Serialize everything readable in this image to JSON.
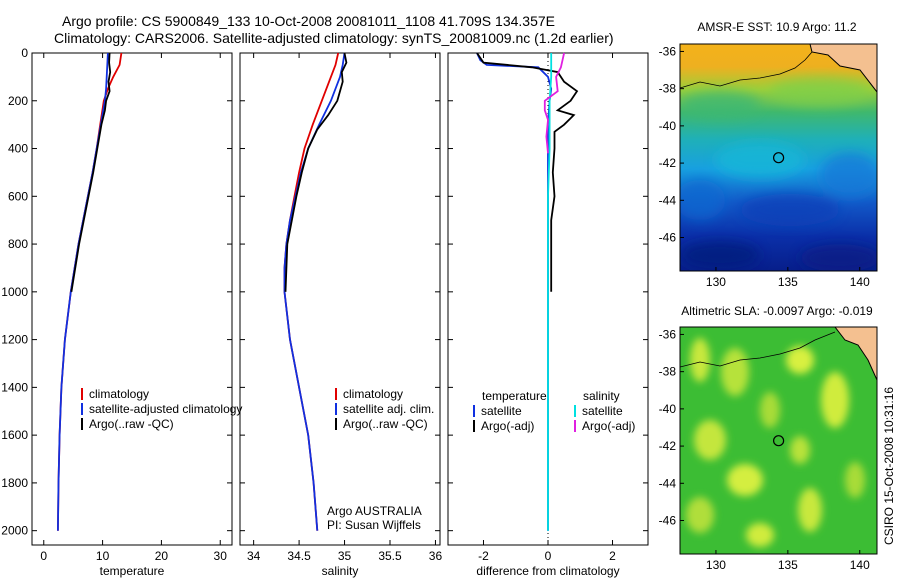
{
  "header": {
    "line1": "Argo profile: CS 5900849_133 10-Oct-2008 20081011_1108 41.709S 134.357E",
    "line2": "Climatology: CARS2006. Satellite-adjusted climatology: synTS_20081009.nc (1.2d earlier)"
  },
  "side_label": "CSIRO 15-Oct-2008 10:31:16",
  "colors": {
    "climatology": "#e00000",
    "satellite": "#1030e0",
    "argo": "#000000",
    "sat_salinity": "#00e0e0",
    "argo_salinity": "#e020e0"
  },
  "chart_data": [
    {
      "type": "line",
      "xlabel": "temperature",
      "xlim": [
        -2,
        32
      ],
      "xticks": [
        0,
        10,
        20,
        30
      ],
      "xtick_labels": [
        "0",
        "10",
        "20",
        "30"
      ],
      "ylim": [
        2060,
        0
      ],
      "yticks": [
        0,
        200,
        400,
        600,
        800,
        1000,
        1200,
        1400,
        1600,
        1800,
        2000
      ],
      "ytick_labels": [
        "0",
        "200",
        "400",
        "600",
        "800",
        "1000",
        "1200",
        "1400",
        "1600",
        "1800",
        "2000"
      ],
      "legend": [
        "climatology",
        "satellite-adjusted climatology",
        "Argo(..raw -QC)"
      ],
      "series": [
        {
          "name": "climatology",
          "depth": [
            0,
            50,
            100,
            150,
            200,
            300,
            400,
            500,
            600,
            800,
            1000,
            1200,
            1400,
            1600,
            1800,
            2000
          ],
          "values": [
            13.2,
            12.9,
            11.8,
            10.9,
            10.2,
            9.6,
            9.0,
            8.3,
            7.5,
            5.9,
            4.6,
            3.6,
            3.0,
            2.7,
            2.5,
            2.4
          ]
        },
        {
          "name": "satellite-adjusted climatology",
          "depth": [
            0,
            50,
            100,
            150,
            200,
            300,
            400,
            500,
            600,
            800,
            1000,
            1200,
            1400,
            1600,
            1800,
            2000
          ],
          "values": [
            10.9,
            10.8,
            10.7,
            10.6,
            10.4,
            9.7,
            9.0,
            8.3,
            7.5,
            5.9,
            4.6,
            3.6,
            3.0,
            2.7,
            2.5,
            2.4
          ]
        },
        {
          "name": "Argo(..raw -QC)",
          "depth": [
            0,
            40,
            80,
            120,
            160,
            200,
            240,
            300,
            400,
            500,
            600,
            800,
            1000
          ],
          "values": [
            11.2,
            11.1,
            11.3,
            11.0,
            11.2,
            10.6,
            10.4,
            9.8,
            9.1,
            8.4,
            7.6,
            6.0,
            4.7
          ]
        }
      ]
    },
    {
      "type": "line",
      "xlabel": "salinity",
      "xlim": [
        33.85,
        36.05
      ],
      "xticks": [
        34,
        34.5,
        35,
        35.5,
        36
      ],
      "xtick_labels": [
        "34",
        "34.5",
        "35",
        "35.5",
        "36"
      ],
      "legend": [
        "climatology",
        "satellite adj. clim.",
        "Argo(..raw -QC)"
      ],
      "annotation": [
        "Argo AUSTRALIA",
        "PI: Susan Wijffels"
      ],
      "series": [
        {
          "name": "climatology",
          "depth": [
            0,
            50,
            100,
            200,
            300,
            400,
            500,
            600,
            700,
            800,
            900,
            1000,
            1200,
            1400,
            1600,
            1800,
            2000
          ],
          "values": [
            34.93,
            34.9,
            34.85,
            34.75,
            34.65,
            34.56,
            34.5,
            34.45,
            34.4,
            34.36,
            34.34,
            34.34,
            34.4,
            34.5,
            34.6,
            34.66,
            34.7
          ]
        },
        {
          "name": "satellite adj. clim.",
          "depth": [
            0,
            50,
            100,
            200,
            300,
            400,
            500,
            600,
            700,
            800,
            900,
            1000,
            1200,
            1400,
            1600,
            1800,
            2000
          ],
          "values": [
            35.0,
            34.98,
            34.95,
            34.85,
            34.72,
            34.6,
            34.52,
            34.46,
            34.4,
            34.36,
            34.34,
            34.34,
            34.4,
            34.5,
            34.6,
            34.66,
            34.7
          ]
        },
        {
          "name": "Argo(..raw -QC)",
          "depth": [
            0,
            40,
            80,
            120,
            160,
            200,
            260,
            320,
            400,
            500,
            600,
            800,
            1000
          ],
          "values": [
            35.0,
            35.02,
            34.97,
            34.98,
            34.95,
            34.92,
            34.82,
            34.7,
            34.6,
            34.53,
            34.47,
            34.37,
            34.35
          ]
        }
      ]
    },
    {
      "type": "line",
      "xlabel": "difference from climatology",
      "xlim": [
        -3.1,
        3.1
      ],
      "xticks": [
        -2,
        0,
        2
      ],
      "xtick_labels": [
        "-2",
        "0",
        "2"
      ],
      "legend": [
        "temperature",
        "satellite",
        "Argo(-adj)",
        "salinity",
        "satellite",
        "Argo(-adj)"
      ],
      "series": [
        {
          "name": "satellite",
          "depth": [
            0,
            30,
            50,
            60,
            100,
            150,
            200,
            300,
            400,
            600,
            2000
          ],
          "values": [
            -2.2,
            -2.1,
            -1.9,
            -0.3,
            0.0,
            0.1,
            0.05,
            0.0,
            0.0,
            0.0,
            0.0
          ]
        },
        {
          "name": "Argo(-adj)",
          "depth": [
            0,
            40,
            60,
            80,
            120,
            160,
            200,
            240,
            260,
            300,
            330,
            400,
            500,
            600,
            700,
            800,
            1000
          ],
          "values": [
            -2.2,
            -2.0,
            -0.5,
            0.3,
            0.5,
            0.9,
            0.7,
            0.3,
            0.8,
            0.5,
            0.2,
            0.2,
            0.15,
            0.2,
            0.1,
            0.1,
            0.1
          ]
        },
        {
          "name": "satellite",
          "depth": [
            0,
            100,
            200,
            400,
            600,
            800,
            1000,
            1200,
            1400,
            1600,
            1800,
            2000
          ],
          "values": [
            0.1,
            0.1,
            0.05,
            0.05,
            0.0,
            0.0,
            0.0,
            0.0,
            0.0,
            0.0,
            0.0,
            0.0
          ]
        },
        {
          "name": "Argo(-adj)",
          "depth": [
            0,
            30,
            60,
            100,
            160,
            200,
            240,
            280,
            350,
            420
          ],
          "values": [
            0.5,
            0.45,
            0.4,
            0.25,
            0.3,
            -0.1,
            -0.1,
            0.0,
            -0.05,
            0.0
          ]
        }
      ]
    },
    {
      "type": "heatmap",
      "title": "AMSR-E SST: 10.9 Argo: 11.2",
      "xlim": [
        127.5,
        141.2
      ],
      "ylim": [
        -47.8,
        -35.6
      ],
      "xticks": [
        130,
        135,
        140
      ],
      "xtick_labels": [
        "130",
        "135",
        "140"
      ],
      "yticks": [
        -36,
        -38,
        -40,
        -42,
        -44,
        -46
      ],
      "ytick_labels": [
        "-36",
        "-38",
        "-40",
        "-42",
        "-44",
        "-46"
      ],
      "marker": {
        "lon": 134.357,
        "lat": -41.709
      }
    },
    {
      "type": "heatmap",
      "title": "Altimetric SLA: -0.0097 Argo: -0.019",
      "xlim": [
        127.5,
        141.2
      ],
      "ylim": [
        -47.8,
        -35.6
      ],
      "xticks": [
        130,
        135,
        140
      ],
      "xtick_labels": [
        "130",
        "135",
        "140"
      ],
      "yticks": [
        -36,
        -38,
        -40,
        -42,
        -44,
        -46
      ],
      "ytick_labels": [
        "-36",
        "-38",
        "-40",
        "-42",
        "-44",
        "-46"
      ],
      "marker": {
        "lon": 134.357,
        "lat": -41.709
      }
    }
  ]
}
